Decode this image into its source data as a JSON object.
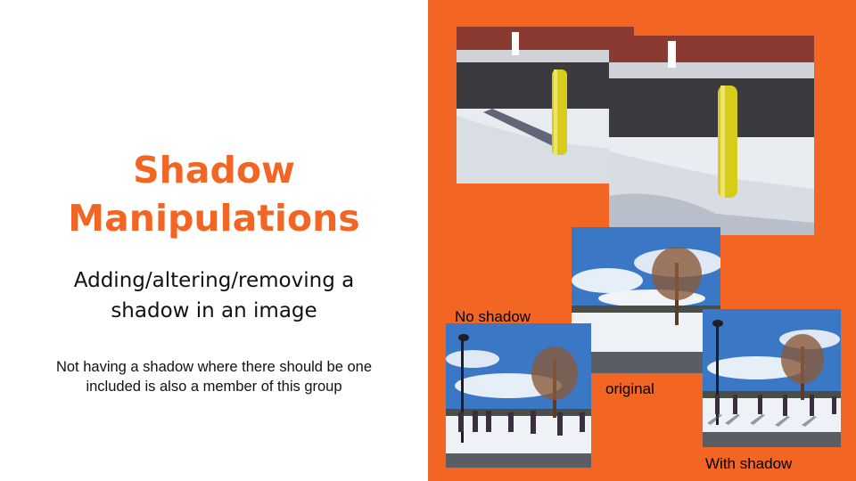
{
  "slide": {
    "title_line1": "Shadow",
    "title_line2": "Manipulations",
    "subtitle_line1": "Adding/altering/removing a",
    "subtitle_line2": "shadow in an image",
    "note_line1": "Not having a shadow where there should be one",
    "note_line2": "included is also a member of this group"
  },
  "panel": {
    "accent_color": "#f26522",
    "captions": {
      "no_shadow": "No shadow",
      "original": "original",
      "with_shadow": "With shadow"
    }
  }
}
